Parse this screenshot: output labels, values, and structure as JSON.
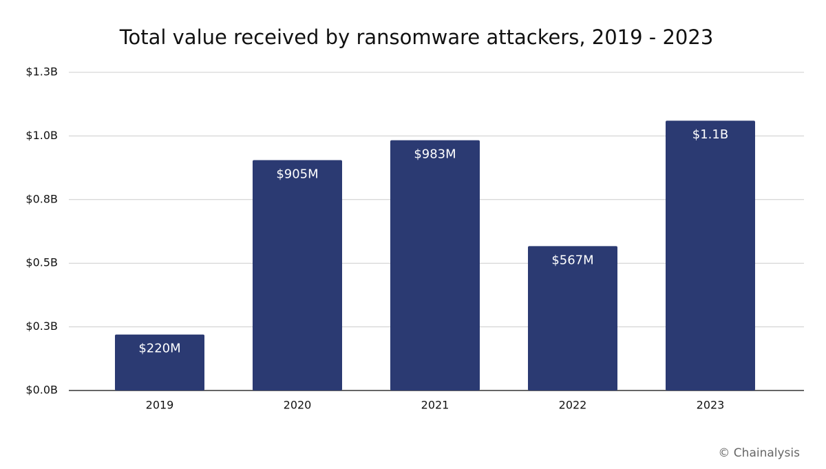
{
  "chart_data": {
    "type": "bar",
    "title": "Total value received by ransomware attackers, 2019 - 2023",
    "categories": [
      "2019",
      "2020",
      "2021",
      "2022",
      "2023"
    ],
    "values": [
      0.22,
      0.905,
      0.983,
      0.567,
      1.06
    ],
    "value_labels": [
      "$220M",
      "$905M",
      "$983M",
      "$567M",
      "$1.1B"
    ],
    "color": "#2b3a72",
    "ylim": [
      0,
      1.25
    ],
    "yticks": [
      {
        "value": 0,
        "label": "$0.0B"
      },
      {
        "value": 0.25,
        "label": "$0.3B"
      },
      {
        "value": 0.5,
        "label": "$0.5B"
      },
      {
        "value": 0.75,
        "label": "$0.8B"
      },
      {
        "value": 1.0,
        "label": "$1.0B"
      },
      {
        "value": 1.25,
        "label": "$1.3B"
      }
    ],
    "grid": true,
    "source": "© Chainalysis"
  }
}
